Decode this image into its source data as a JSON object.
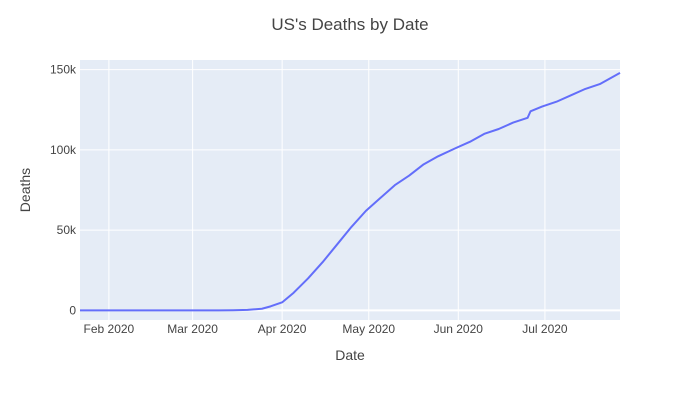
{
  "chart_data": {
    "type": "line",
    "title": "US's Deaths by Date",
    "xlabel": "Date",
    "ylabel": "Deaths",
    "x_axis": {
      "type": "date",
      "range": [
        "2020-01-22",
        "2020-07-27"
      ],
      "tick_values": [
        "2020-02-01",
        "2020-03-01",
        "2020-04-01",
        "2020-05-01",
        "2020-06-01",
        "2020-07-01"
      ],
      "tick_labels": [
        "Feb 2020",
        "Mar 2020",
        "Apr 2020",
        "May 2020",
        "Jun 2020",
        "Jul 2020"
      ]
    },
    "y_axis": {
      "range": [
        -6000,
        156000
      ],
      "tick_values": [
        0,
        50000,
        100000,
        150000
      ],
      "tick_labels": [
        "0",
        "50k",
        "100k",
        "150k"
      ]
    },
    "grid": true,
    "background_color": "#e5ecf6",
    "line_color": "#636efa",
    "series": [
      {
        "x": [
          "2020-01-22",
          "2020-02-01",
          "2020-02-15",
          "2020-02-29",
          "2020-03-10",
          "2020-03-15",
          "2020-03-20",
          "2020-03-25",
          "2020-03-28",
          "2020-04-01",
          "2020-04-05",
          "2020-04-10",
          "2020-04-15",
          "2020-04-20",
          "2020-04-25",
          "2020-04-30",
          "2020-05-05",
          "2020-05-10",
          "2020-05-15",
          "2020-05-20",
          "2020-05-25",
          "2020-05-31",
          "2020-06-05",
          "2020-06-10",
          "2020-06-15",
          "2020-06-20",
          "2020-06-25",
          "2020-06-26",
          "2020-06-30",
          "2020-07-05",
          "2020-07-10",
          "2020-07-15",
          "2020-07-20",
          "2020-07-27"
        ],
        "y": [
          0,
          0,
          0,
          1,
          30,
          80,
          300,
          1000,
          2500,
          5000,
          11000,
          20000,
          30000,
          41000,
          52000,
          62000,
          70000,
          78000,
          84000,
          91000,
          96000,
          101000,
          105000,
          110000,
          113000,
          117000,
          120000,
          124000,
          127000,
          130000,
          134000,
          138000,
          141000,
          148000
        ]
      }
    ]
  }
}
